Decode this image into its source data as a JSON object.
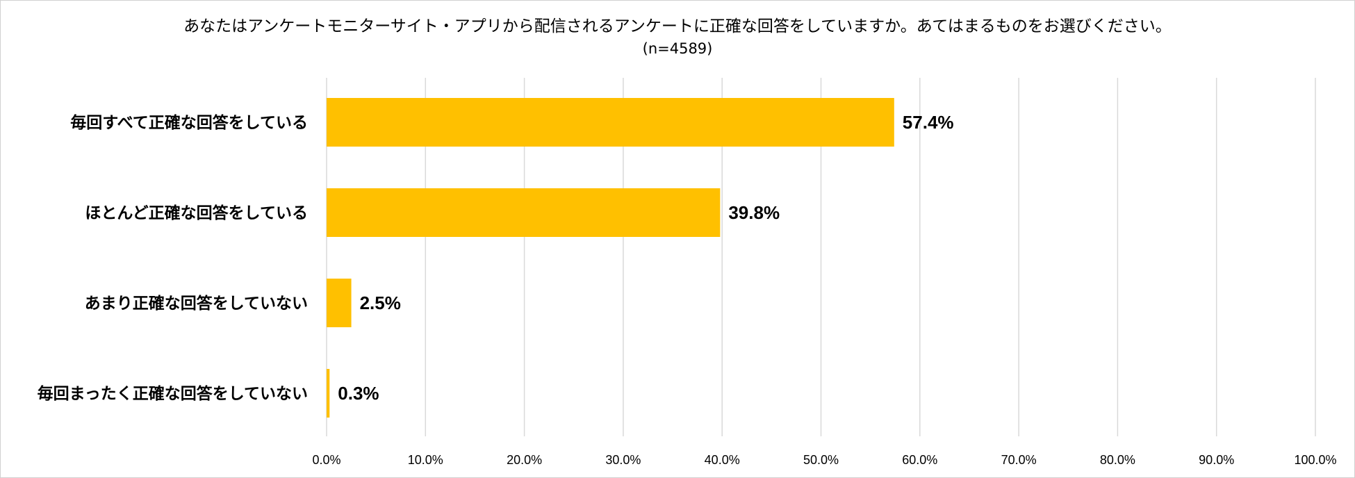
{
  "chart_data": {
    "type": "bar",
    "orientation": "horizontal",
    "title": "あなたはアンケートモニターサイト・アプリから配信されるアンケートに正確な回答をしていますか。あてはまるものをお選びください。",
    "subtitle": "(n=4589)",
    "categories": [
      "毎回すべて正確な回答をしている",
      "ほとんど正確な回答をしている",
      "あまり正確な回答をしていない",
      "毎回まったく正確な回答をしていない"
    ],
    "values": [
      57.4,
      39.8,
      2.5,
      0.3
    ],
    "value_labels": [
      "57.4%",
      "39.8%",
      "2.5%",
      "0.3%"
    ],
    "xlim": [
      0,
      100
    ],
    "x_ticks": [
      0,
      10,
      20,
      30,
      40,
      50,
      60,
      70,
      80,
      90,
      100
    ],
    "x_tick_labels": [
      "0.0%",
      "10.0%",
      "20.0%",
      "30.0%",
      "40.0%",
      "50.0%",
      "60.0%",
      "70.0%",
      "80.0%",
      "90.0%",
      "100.0%"
    ],
    "grid": true,
    "legend": "none",
    "colors": {
      "bar": "#FFC000",
      "grid": "#D9D9D9",
      "text": "#000000"
    }
  }
}
